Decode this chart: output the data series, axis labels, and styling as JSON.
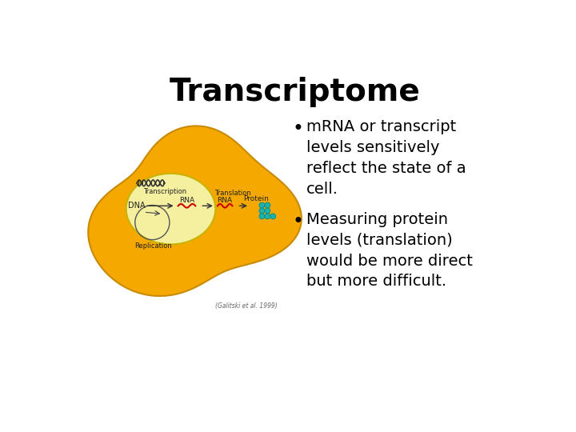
{
  "title": "Transcriptome",
  "title_fontsize": 28,
  "title_fontweight": "bold",
  "bullet1": "mRNA or transcript\nlevels sensitively\nreflect the state of a\ncell.",
  "bullet2": "Measuring protein\nlevels (translation)\nwould be more direct\nbut more difficult.",
  "bullet_fontsize": 14,
  "background_color": "#ffffff",
  "text_color": "#000000",
  "cell_color": "#F5A800",
  "cell_edge": "#C98A00",
  "nucleus_color": "#F5EFA0",
  "nucleus_edge": "#C8B400",
  "inner_circle_color": "#FFFFFF",
  "inner_circle_edge": "#AAAAAA",
  "rna_color": "#CC0000",
  "protein_color": "#20B2AA",
  "caption": "(Galitski et al. 1999)"
}
